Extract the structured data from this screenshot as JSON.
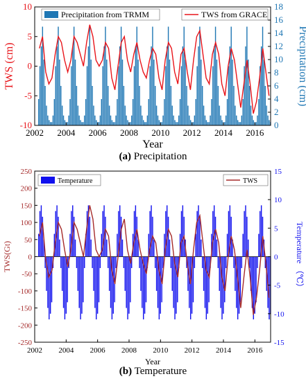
{
  "captions": [
    {
      "label": "(a)",
      "text": "Precipitation"
    },
    {
      "label": "(b)",
      "text": "Temperature"
    }
  ],
  "colors": {
    "precip": "#1f77b4",
    "tws": "#e8141a",
    "temp": "#1111ee",
    "tws_b": "#a52a2a"
  },
  "chart_data": [
    {
      "type": "bar",
      "xlabel": "Year",
      "ylabel_left": "TWS (cm)",
      "ylabel_right": "Precipitation (cm)",
      "xlim": [
        2002,
        2017
      ],
      "ylim_left": [
        -10,
        10
      ],
      "ylim_right": [
        0,
        18
      ],
      "xticks": [
        2002,
        2004,
        2006,
        2008,
        2010,
        2012,
        2014,
        2016
      ],
      "yticks_left": [
        -10,
        -5,
        0,
        5,
        10
      ],
      "yticks_right": [
        0,
        2,
        4,
        6,
        8,
        10,
        12,
        14,
        16,
        18
      ],
      "legend": {
        "bars": "Precipitation from TRMM",
        "line": "TWS from GRACE"
      },
      "series": [
        {
          "name": "Precipitation from TRMM",
          "kind": "bar",
          "axis": "right",
          "start": 2002.25,
          "step": 0.0833,
          "values": [
            4,
            9,
            12,
            15,
            10,
            6,
            3,
            1.5,
            0.8,
            0.5,
            0.5,
            1.5,
            4,
            9,
            12,
            15,
            10,
            6,
            3,
            1.5,
            0.8,
            0.5,
            0.5,
            1.5,
            4,
            9,
            12,
            15,
            10,
            6,
            3,
            1.5,
            0.8,
            0.5,
            0.5,
            1.5,
            4,
            9,
            12,
            15,
            10,
            6,
            3,
            1.5,
            0.8,
            0.5,
            0.5,
            1.5,
            4,
            9,
            12,
            15,
            10,
            6,
            3,
            1.5,
            0.8,
            0.5,
            0.5,
            1.5,
            4,
            9,
            12,
            15,
            10,
            6,
            3,
            1.5,
            0.8,
            0.5,
            0.5,
            1.5,
            4,
            9,
            12,
            15,
            10,
            6,
            3,
            1.5,
            0.8,
            0.5,
            0.5,
            1.5,
            4,
            9,
            12,
            15,
            10,
            6,
            3,
            1.5,
            0.8,
            0.5,
            0.5,
            1.5,
            4,
            9,
            12,
            15,
            10,
            6,
            3,
            1.5,
            0.8,
            0.5,
            0.5,
            1.5,
            4,
            9,
            12,
            15,
            10,
            6,
            3,
            1.5,
            0.8,
            0.5,
            0.5,
            1.5,
            4,
            9,
            12,
            15,
            10,
            6,
            3,
            1.5,
            0.8,
            0.5,
            0.5,
            1.5,
            4,
            9,
            12,
            15,
            10,
            6,
            3,
            1.5,
            0.8,
            0.5,
            0.5,
            1.5,
            4,
            9,
            12,
            15,
            10,
            6,
            3,
            1.5,
            0.8,
            0.5,
            0.5,
            1.5,
            4,
            9,
            12,
            15,
            10,
            6,
            3,
            1.5,
            0.8,
            0.5,
            0.5,
            1.5,
            4,
            9,
            12,
            15,
            10,
            6,
            3,
            1.5,
            0.8,
            0.5,
            0.5,
            1.5
          ]
        },
        {
          "name": "TWS from GRACE",
          "kind": "line",
          "axis": "left",
          "x": [
            2002.3,
            2002.5,
            2002.7,
            2002.9,
            2003.1,
            2003.3,
            2003.5,
            2003.7,
            2003.9,
            2004.1,
            2004.3,
            2004.5,
            2004.7,
            2004.9,
            2005.1,
            2005.3,
            2005.5,
            2005.7,
            2005.9,
            2006.1,
            2006.3,
            2006.5,
            2006.7,
            2006.9,
            2007.1,
            2007.3,
            2007.5,
            2007.7,
            2007.9,
            2008.1,
            2008.3,
            2008.5,
            2008.7,
            2008.9,
            2009.1,
            2009.3,
            2009.5,
            2009.7,
            2009.9,
            2010.1,
            2010.3,
            2010.5,
            2010.7,
            2010.9,
            2011.1,
            2011.3,
            2011.5,
            2011.7,
            2011.9,
            2012.1,
            2012.3,
            2012.5,
            2012.7,
            2012.9,
            2013.1,
            2013.3,
            2013.5,
            2013.7,
            2013.9,
            2014.1,
            2014.3,
            2014.5,
            2014.7,
            2014.9,
            2015.1,
            2015.3,
            2015.5,
            2015.7,
            2015.9,
            2016.1,
            2016.3,
            2016.5,
            2016.7,
            2016.9
          ],
          "y": [
            3,
            5,
            -1,
            -3,
            -2,
            2,
            5,
            4,
            1,
            -1,
            1,
            5,
            4,
            2,
            0,
            4,
            7,
            5,
            1,
            0,
            1,
            4,
            3,
            -2,
            -4,
            0,
            4,
            5,
            1,
            -1,
            2,
            4,
            1,
            -1,
            -2,
            1,
            3,
            2,
            -2,
            -4,
            1,
            4,
            3,
            -1,
            -3,
            2,
            3,
            -1,
            -4,
            1,
            5,
            6,
            2,
            -2,
            -3,
            2,
            4,
            2,
            -3,
            -5,
            0,
            3,
            1,
            -3,
            -7,
            -3,
            1,
            -3,
            -8,
            -6,
            -2,
            3,
            -1,
            -5
          ]
        }
      ]
    },
    {
      "type": "bar",
      "xlabel": "Year",
      "ylabel_left": "TWS(Gt)",
      "ylabel_right": "Temperature （℃）",
      "xlim": [
        2002,
        2017
      ],
      "ylim_left": [
        -250,
        250
      ],
      "ylim_right": [
        -15,
        15
      ],
      "xticks": [
        2002,
        2004,
        2006,
        2008,
        2010,
        2012,
        2014,
        2016
      ],
      "yticks_left": [
        -250,
        -200,
        -150,
        -100,
        -50,
        0,
        50,
        100,
        150,
        200,
        250
      ],
      "yticks_right": [
        -15,
        -10,
        -5,
        0,
        5,
        10,
        15
      ],
      "legend": {
        "bars": "Temperature",
        "line": "TWS"
      },
      "series": [
        {
          "name": "Temperature",
          "kind": "bar",
          "axis": "right",
          "start": 2002.25,
          "step": 0.0833,
          "values": [
            4,
            8,
            9,
            7,
            3,
            -2,
            -6,
            -9,
            -11,
            -10,
            -8,
            -2,
            4,
            8,
            9,
            7,
            3,
            -2,
            -6,
            -9,
            -11,
            -10,
            -8,
            -2,
            4,
            8,
            9,
            7,
            3,
            -2,
            -6,
            -9,
            -11,
            -10,
            -8,
            -2,
            4,
            8,
            9,
            7,
            3,
            -2,
            -6,
            -9,
            -11,
            -10,
            -8,
            -2,
            4,
            8,
            9,
            7,
            3,
            -2,
            -6,
            -9,
            -11,
            -10,
            -8,
            -2,
            4,
            8,
            9,
            7,
            3,
            -2,
            -6,
            -9,
            -11,
            -10,
            -8,
            -2,
            4,
            8,
            9,
            7,
            3,
            -2,
            -6,
            -9,
            -11,
            -10,
            -8,
            -2,
            4,
            8,
            9,
            7,
            3,
            -2,
            -6,
            -9,
            -11,
            -10,
            -8,
            -2,
            4,
            8,
            9,
            7,
            3,
            -2,
            -6,
            -9,
            -11,
            -10,
            -8,
            -2,
            4,
            8,
            9,
            7,
            3,
            -2,
            -6,
            -9,
            -11,
            -10,
            -8,
            -2,
            4,
            8,
            9,
            7,
            3,
            -2,
            -6,
            -9,
            -11,
            -10,
            -8,
            -2,
            4,
            8,
            9,
            7,
            3,
            -2,
            -6,
            -9,
            -11,
            -10,
            -8,
            -2,
            4,
            8,
            9,
            7,
            3,
            -2,
            -6,
            -9,
            -11,
            -10,
            -8,
            -2,
            4,
            8,
            9,
            7,
            3,
            -2,
            -6,
            -9,
            -11,
            -10,
            -8,
            -2,
            4,
            8,
            9,
            7,
            3,
            -2,
            -6,
            -9,
            -11,
            -10,
            -8,
            -2
          ]
        },
        {
          "name": "TWS",
          "kind": "line",
          "axis": "left",
          "x": [
            2002.3,
            2002.5,
            2002.7,
            2002.9,
            2003.1,
            2003.3,
            2003.5,
            2003.7,
            2003.9,
            2004.1,
            2004.3,
            2004.5,
            2004.7,
            2004.9,
            2005.1,
            2005.3,
            2005.5,
            2005.7,
            2005.9,
            2006.1,
            2006.3,
            2006.5,
            2006.7,
            2006.9,
            2007.1,
            2007.3,
            2007.5,
            2007.7,
            2007.9,
            2008.1,
            2008.3,
            2008.5,
            2008.7,
            2008.9,
            2009.1,
            2009.3,
            2009.5,
            2009.7,
            2009.9,
            2010.1,
            2010.3,
            2010.5,
            2010.7,
            2010.9,
            2011.1,
            2011.3,
            2011.5,
            2011.7,
            2011.9,
            2012.1,
            2012.3,
            2012.5,
            2012.7,
            2012.9,
            2013.1,
            2013.3,
            2013.5,
            2013.7,
            2013.9,
            2014.1,
            2014.3,
            2014.5,
            2014.7,
            2014.9,
            2015.1,
            2015.3,
            2015.5,
            2015.7,
            2015.9,
            2016.1,
            2016.3,
            2016.5,
            2016.7,
            2016.9
          ],
          "y": [
            60,
            100,
            -10,
            -60,
            -40,
            40,
            100,
            80,
            20,
            -30,
            20,
            100,
            80,
            40,
            0,
            80,
            150,
            110,
            20,
            0,
            20,
            80,
            60,
            -40,
            -80,
            0,
            80,
            110,
            20,
            -20,
            40,
            80,
            20,
            -20,
            -50,
            20,
            60,
            40,
            -40,
            -80,
            20,
            80,
            60,
            -20,
            -60,
            40,
            60,
            -20,
            -80,
            20,
            100,
            120,
            40,
            -40,
            -60,
            40,
            80,
            40,
            -60,
            -100,
            0,
            60,
            20,
            -60,
            -150,
            -60,
            20,
            -60,
            -170,
            -120,
            -40,
            60,
            -20,
            -120
          ]
        }
      ]
    }
  ]
}
